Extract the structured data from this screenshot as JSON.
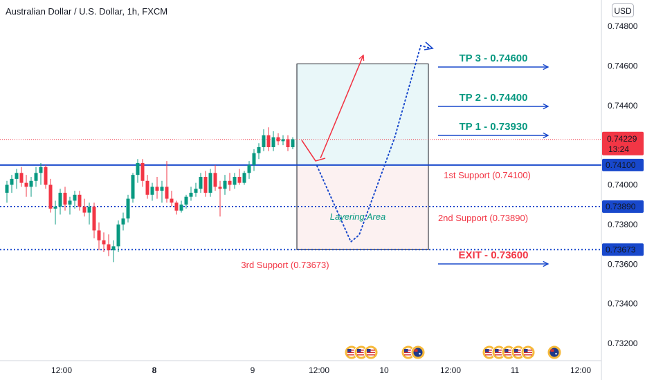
{
  "header": {
    "title": "Australian Dollar / U.S. Dollar, 1h, FXCM",
    "currency": "USD"
  },
  "chart_data": {
    "type": "candlestick",
    "ylim": [
      0.7306,
      0.7488
    ],
    "y_ticks": [
      "0.74800",
      "0.74600",
      "0.74400",
      "0.74000",
      "0.73800",
      "0.73600",
      "0.73400",
      "0.73200"
    ],
    "x_ticks": [
      {
        "label": "12:00",
        "bold": false
      },
      {
        "label": "8",
        "bold": true
      },
      {
        "label": "9",
        "bold": false
      },
      {
        "label": "12:00",
        "bold": false
      },
      {
        "label": "10",
        "bold": false
      },
      {
        "label": "12:00",
        "bold": false
      },
      {
        "label": "11",
        "bold": false
      },
      {
        "label": "12:00",
        "bold": false
      }
    ],
    "last_price": {
      "value": "0.74229",
      "countdown": "13:24",
      "color": "#f23645"
    },
    "candles": [
      {
        "o": 0.7396,
        "h": 0.7402,
        "l": 0.7391,
        "c": 0.74
      },
      {
        "o": 0.74,
        "h": 0.7405,
        "l": 0.7396,
        "c": 0.7403
      },
      {
        "o": 0.7403,
        "h": 0.7408,
        "l": 0.7398,
        "c": 0.7406
      },
      {
        "o": 0.7406,
        "h": 0.7409,
        "l": 0.7399,
        "c": 0.7401
      },
      {
        "o": 0.7401,
        "h": 0.7405,
        "l": 0.7394,
        "c": 0.7399
      },
      {
        "o": 0.7399,
        "h": 0.7404,
        "l": 0.7394,
        "c": 0.7402
      },
      {
        "o": 0.7402,
        "h": 0.7409,
        "l": 0.7399,
        "c": 0.7406
      },
      {
        "o": 0.7406,
        "h": 0.7411,
        "l": 0.74,
        "c": 0.7409
      },
      {
        "o": 0.7409,
        "h": 0.741,
        "l": 0.7398,
        "c": 0.74
      },
      {
        "o": 0.74,
        "h": 0.7403,
        "l": 0.7386,
        "c": 0.7388
      },
      {
        "o": 0.7388,
        "h": 0.7392,
        "l": 0.738,
        "c": 0.7389
      },
      {
        "o": 0.7389,
        "h": 0.7398,
        "l": 0.7385,
        "c": 0.7396
      },
      {
        "o": 0.7396,
        "h": 0.7399,
        "l": 0.7387,
        "c": 0.739
      },
      {
        "o": 0.739,
        "h": 0.7394,
        "l": 0.7385,
        "c": 0.7392
      },
      {
        "o": 0.7392,
        "h": 0.7397,
        "l": 0.7388,
        "c": 0.7395
      },
      {
        "o": 0.7395,
        "h": 0.7397,
        "l": 0.7387,
        "c": 0.7389
      },
      {
        "o": 0.7389,
        "h": 0.7393,
        "l": 0.7384,
        "c": 0.7386
      },
      {
        "o": 0.7386,
        "h": 0.7391,
        "l": 0.738,
        "c": 0.7389
      },
      {
        "o": 0.7389,
        "h": 0.7391,
        "l": 0.7373,
        "c": 0.7377
      },
      {
        "o": 0.7377,
        "h": 0.7381,
        "l": 0.7367,
        "c": 0.7372
      },
      {
        "o": 0.7372,
        "h": 0.7376,
        "l": 0.7366,
        "c": 0.737
      },
      {
        "o": 0.737,
        "h": 0.7375,
        "l": 0.7364,
        "c": 0.7367
      },
      {
        "o": 0.7367,
        "h": 0.7372,
        "l": 0.7361,
        "c": 0.7369
      },
      {
        "o": 0.7369,
        "h": 0.7382,
        "l": 0.7366,
        "c": 0.738
      },
      {
        "o": 0.738,
        "h": 0.7386,
        "l": 0.7377,
        "c": 0.7383
      },
      {
        "o": 0.7383,
        "h": 0.7395,
        "l": 0.7381,
        "c": 0.7393
      },
      {
        "o": 0.7393,
        "h": 0.7406,
        "l": 0.7391,
        "c": 0.7405
      },
      {
        "o": 0.7405,
        "h": 0.7413,
        "l": 0.7401,
        "c": 0.7411
      },
      {
        "o": 0.7411,
        "h": 0.7413,
        "l": 0.7399,
        "c": 0.7402
      },
      {
        "o": 0.7402,
        "h": 0.7405,
        "l": 0.7393,
        "c": 0.7395
      },
      {
        "o": 0.7395,
        "h": 0.7401,
        "l": 0.7392,
        "c": 0.7399
      },
      {
        "o": 0.7399,
        "h": 0.7404,
        "l": 0.7393,
        "c": 0.7397
      },
      {
        "o": 0.7397,
        "h": 0.7402,
        "l": 0.7391,
        "c": 0.7399
      },
      {
        "o": 0.7399,
        "h": 0.7412,
        "l": 0.7391,
        "c": 0.7393
      },
      {
        "o": 0.7393,
        "h": 0.7397,
        "l": 0.7389,
        "c": 0.7391
      },
      {
        "o": 0.7391,
        "h": 0.7392,
        "l": 0.7385,
        "c": 0.7387
      },
      {
        "o": 0.7387,
        "h": 0.7392,
        "l": 0.7386,
        "c": 0.739
      },
      {
        "o": 0.739,
        "h": 0.7395,
        "l": 0.7388,
        "c": 0.7394
      },
      {
        "o": 0.7394,
        "h": 0.7399,
        "l": 0.7392,
        "c": 0.7396
      },
      {
        "o": 0.7396,
        "h": 0.7401,
        "l": 0.7394,
        "c": 0.7398
      },
      {
        "o": 0.7398,
        "h": 0.7406,
        "l": 0.7396,
        "c": 0.7404
      },
      {
        "o": 0.7404,
        "h": 0.7407,
        "l": 0.7394,
        "c": 0.7396
      },
      {
        "o": 0.7396,
        "h": 0.7408,
        "l": 0.7394,
        "c": 0.7406
      },
      {
        "o": 0.7406,
        "h": 0.741,
        "l": 0.7397,
        "c": 0.7399
      },
      {
        "o": 0.7399,
        "h": 0.7402,
        "l": 0.7384,
        "c": 0.7398
      },
      {
        "o": 0.7398,
        "h": 0.7405,
        "l": 0.7395,
        "c": 0.7402
      },
      {
        "o": 0.7402,
        "h": 0.7406,
        "l": 0.7397,
        "c": 0.74
      },
      {
        "o": 0.74,
        "h": 0.7406,
        "l": 0.7398,
        "c": 0.7404
      },
      {
        "o": 0.7404,
        "h": 0.7408,
        "l": 0.74,
        "c": 0.7401
      },
      {
        "o": 0.7401,
        "h": 0.7407,
        "l": 0.74,
        "c": 0.7406
      },
      {
        "o": 0.7406,
        "h": 0.7412,
        "l": 0.7403,
        "c": 0.741
      },
      {
        "o": 0.741,
        "h": 0.7418,
        "l": 0.7407,
        "c": 0.7416
      },
      {
        "o": 0.7416,
        "h": 0.7421,
        "l": 0.7413,
        "c": 0.7419
      },
      {
        "o": 0.7419,
        "h": 0.7428,
        "l": 0.7417,
        "c": 0.7425
      },
      {
        "o": 0.7425,
        "h": 0.7429,
        "l": 0.7417,
        "c": 0.7419
      },
      {
        "o": 0.7419,
        "h": 0.7427,
        "l": 0.7417,
        "c": 0.7424
      },
      {
        "o": 0.7424,
        "h": 0.7426,
        "l": 0.742,
        "c": 0.7422
      },
      {
        "o": 0.7422,
        "h": 0.7425,
        "l": 0.742,
        "c": 0.7423
      },
      {
        "o": 0.7423,
        "h": 0.7425,
        "l": 0.7417,
        "c": 0.7419
      },
      {
        "o": 0.7419,
        "h": 0.7424,
        "l": 0.7418,
        "c": 0.7423
      }
    ],
    "levels": [
      {
        "name": "support-1",
        "value": 0.741,
        "badge": "0.74100",
        "style": "solid"
      },
      {
        "name": "support-2",
        "value": 0.7389,
        "badge": "0.73890",
        "style": "dotted"
      },
      {
        "name": "support-3",
        "value": 0.73673,
        "badge": "0.73673",
        "style": "dotted"
      }
    ],
    "annotations": {
      "layering_label": "Layering Area",
      "support_labels": [
        "1st Support (0.74100)",
        "2nd Support (0.73890)",
        "3rd Support (0.73673)"
      ],
      "targets": [
        {
          "label": "TP 3 - 0.74600",
          "color": "#089981"
        },
        {
          "label": "TP 2 - 0.74400",
          "color": "#089981"
        },
        {
          "label": "TP 1 - 0.73930",
          "color": "#089981"
        },
        {
          "label": "EXIT - 0.73600",
          "color": "#f23645"
        }
      ]
    },
    "events": [
      {
        "group": 1,
        "flags": [
          "us",
          "us",
          "us"
        ]
      },
      {
        "group": 2,
        "flags": [
          "us",
          "au"
        ]
      },
      {
        "group": 3,
        "flags": [
          "us",
          "us",
          "us",
          "us",
          "us"
        ]
      },
      {
        "group": 4,
        "flags": [
          "au"
        ]
      }
    ],
    "colors": {
      "up": "#089981",
      "down": "#f23645",
      "level": "#1848cc",
      "text_red": "#f23645"
    }
  }
}
